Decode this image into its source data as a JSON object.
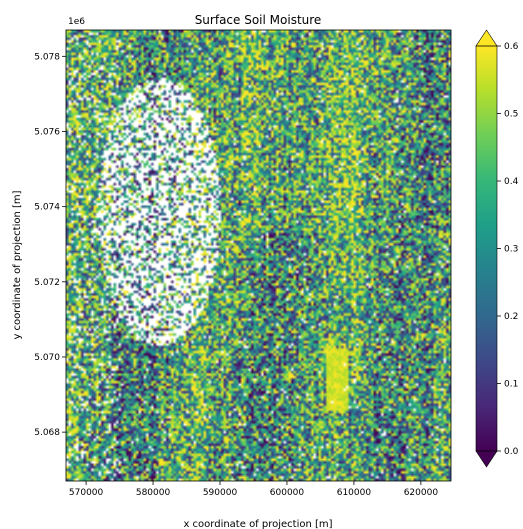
{
  "chart_data": {
    "type": "heatmap",
    "title": "Surface Soil Moisture",
    "xlabel": "x coordinate of projection [m]",
    "ylabel": "y coordinate of projection [m]",
    "y_offset_label": "1e6",
    "xlim": [
      567000,
      624500
    ],
    "ylim": [
      5066700,
      5078700
    ],
    "x_ticks": [
      570000,
      580000,
      590000,
      600000,
      610000,
      620000
    ],
    "x_tick_labels": [
      "570000",
      "580000",
      "590000",
      "600000",
      "610000",
      "620000"
    ],
    "y_ticks": [
      5.068,
      5.07,
      5.072,
      5.074,
      5.076,
      5.078
    ],
    "y_tick_labels": [
      "5.068",
      "5.070",
      "5.072",
      "5.074",
      "5.076",
      "5.078"
    ],
    "colorbar": {
      "colormap": "viridis",
      "vmin": 0.0,
      "vmax": 0.6,
      "extend": "both",
      "ticks": [
        0.0,
        0.1,
        0.2,
        0.3,
        0.4,
        0.5,
        0.6
      ],
      "tick_labels": [
        "0.0",
        "0.1",
        "0.2",
        "0.3",
        "0.4",
        "0.5",
        "0.6"
      ]
    },
    "colors": {
      "viridis_stops": [
        "#440154",
        "#482878",
        "#3e4989",
        "#31688e",
        "#26828e",
        "#1f9e89",
        "#35b779",
        "#6ece58",
        "#b5de2b",
        "#fde725"
      ],
      "nodata": "#ffffff"
    },
    "grid": false
  }
}
